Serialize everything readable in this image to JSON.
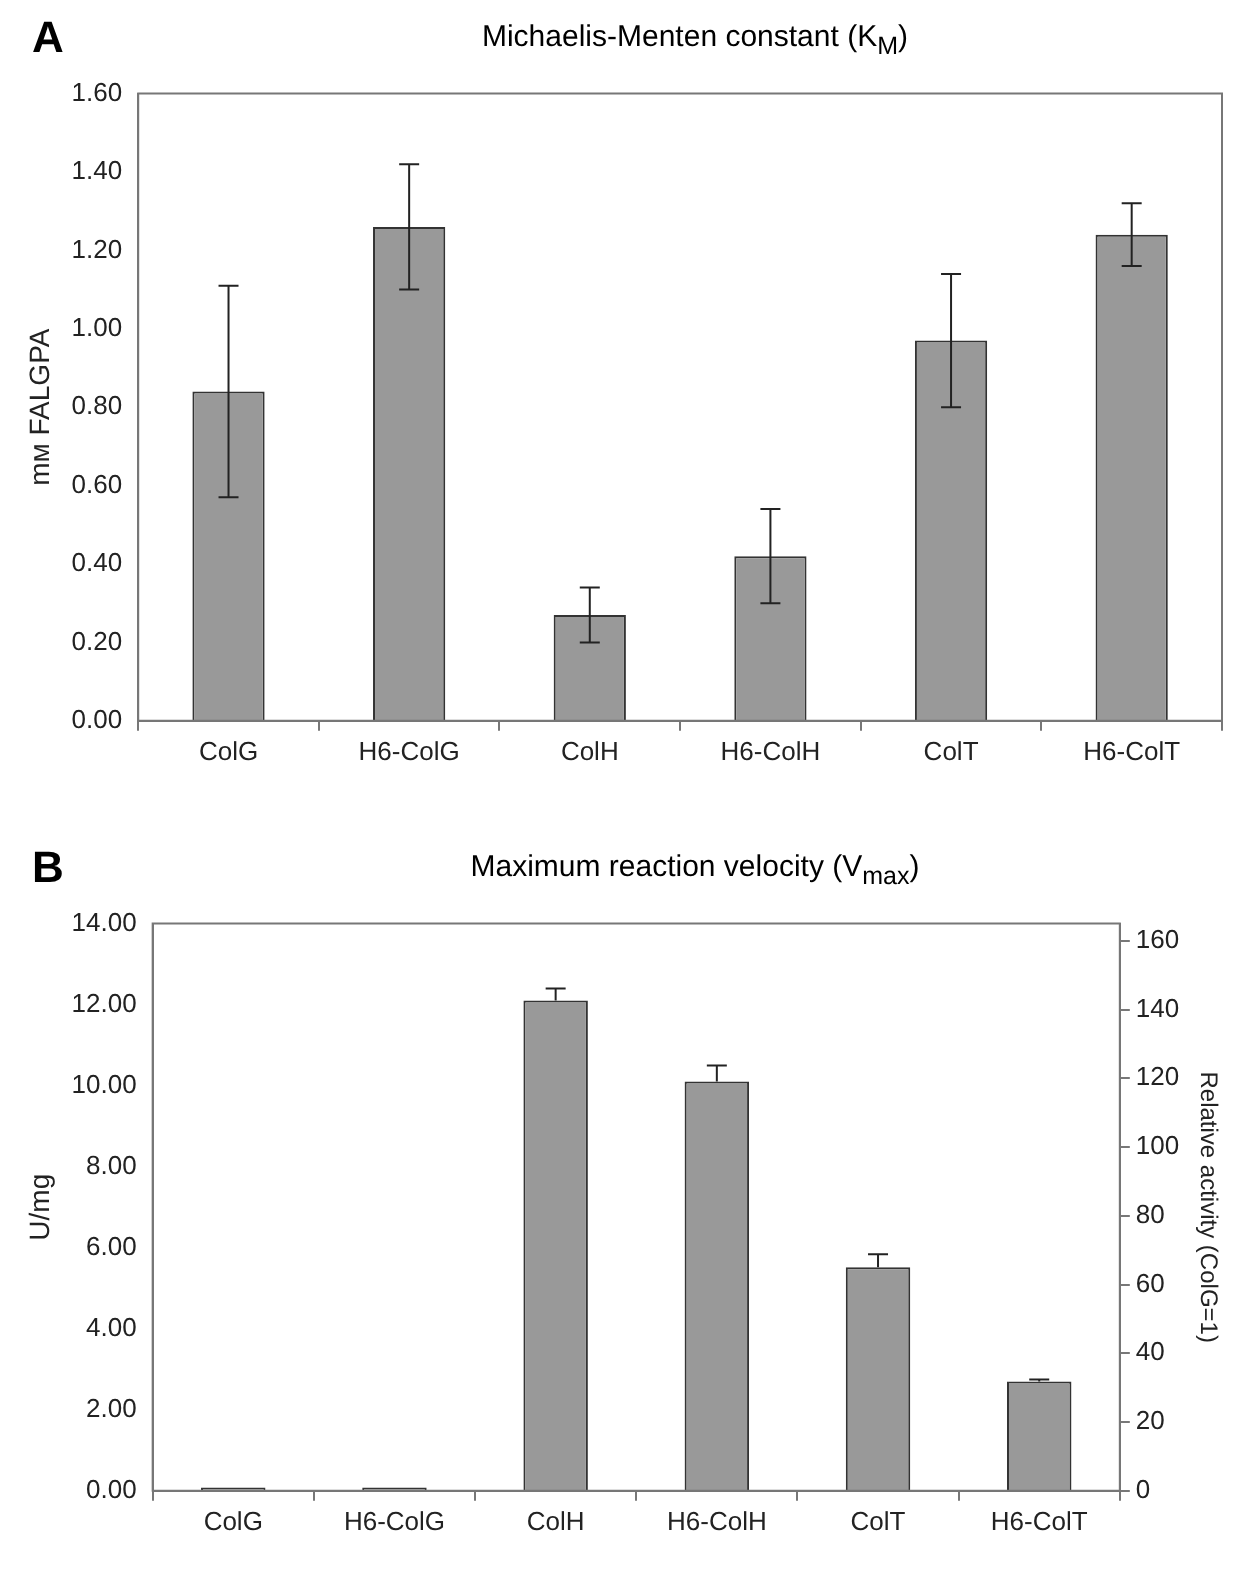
{
  "chart_data": [
    {
      "type": "bar",
      "title": "Michaelis-Menten constant (K$_{M}$)",
      "annotations": [
        "A"
      ],
      "categories": [
        "ColG",
        "H6-ColG",
        "ColH",
        "H6-ColH",
        "ColT",
        "H6-ColT"
      ],
      "values": [
        0.84,
        1.26,
        0.27,
        0.42,
        0.97,
        1.24
      ],
      "errors": [
        0.27,
        0.16,
        0.07,
        0.12,
        0.17,
        0.08
      ],
      "color": "#999999",
      "ylabel": "mᴍ FALGPA",
      "ylim": [
        0,
        1.6
      ],
      "yticks": [
        {
          "value": 0,
          "label": "0.00"
        },
        {
          "value": 0.2,
          "label": "0.20"
        },
        {
          "value": 0.4,
          "label": "0.40"
        },
        {
          "value": 0.6,
          "label": "0.60"
        },
        {
          "value": 0.8,
          "label": "0.80"
        },
        {
          "value": 1,
          "label": "1.00"
        },
        {
          "value": 1.2,
          "label": "1.20"
        },
        {
          "value": 1.4,
          "label": "1.40"
        },
        {
          "value": 1.6,
          "label": "1.60"
        }
      ]
    },
    {
      "type": "bar",
      "title": "Maximum reaction velocity (V$_{max}$)",
      "annotations": [
        "B"
      ],
      "categories": [
        "ColG",
        "H6-ColG",
        "ColH",
        "H6-ColH",
        "ColT",
        "H6-ColT"
      ],
      "values": [
        0.08,
        0.08,
        12.1,
        10.1,
        5.52,
        2.7
      ],
      "errors": [
        null,
        null,
        [
          12.1,
          12.4
        ],
        [
          10.1,
          10.5
        ],
        [
          5.52,
          5.84
        ],
        [
          2.7,
          2.75
        ]
      ],
      "color": "#999999",
      "ylabel": "U/mg",
      "ylim": [
        0,
        14
      ],
      "yticks": [
        {
          "value": 0,
          "label": "0.00"
        },
        {
          "value": 2,
          "label": "2.00"
        },
        {
          "value": 4,
          "label": "4.00"
        },
        {
          "value": 6,
          "label": "6.00"
        },
        {
          "value": 8,
          "label": "8.00"
        },
        {
          "value": 10,
          "label": "10.00"
        },
        {
          "value": 12,
          "label": "12.00"
        },
        {
          "value": 14,
          "label": "14.00"
        }
      ],
      "y2label": "Relative activity (ColG=1)",
      "y2lim": [
        0,
        165
      ],
      "y2ticks": [
        0,
        20,
        40,
        60,
        80,
        100,
        120,
        140,
        160
      ]
    }
  ]
}
